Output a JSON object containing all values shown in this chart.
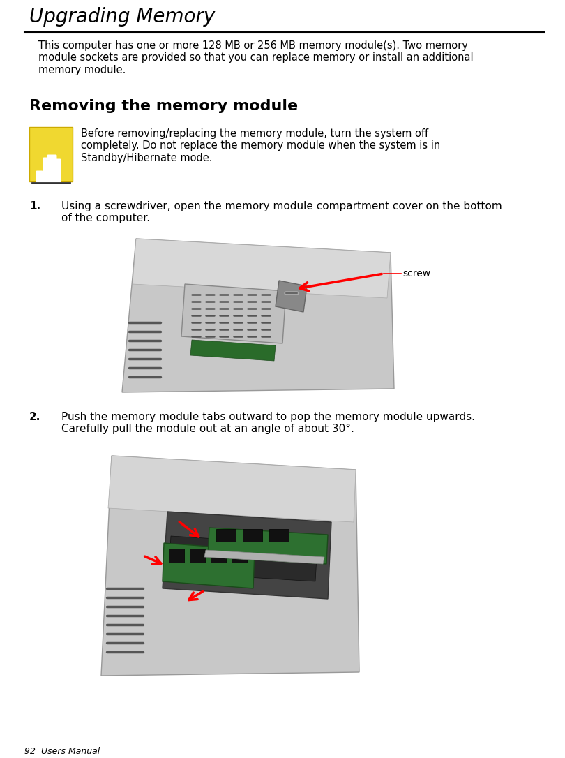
{
  "title": "Upgrading Memory",
  "page_num": "92  Users Manual",
  "bg_color": "#ffffff",
  "title_color": "#000000",
  "title_fontsize": 20,
  "body_text1": "This computer has one or more 128 MB or 256 MB memory module(s). Two memory\nmodule sockets are provided so that you can replace memory or install an additional\nmemory module.",
  "section_title": "Removing the memory module",
  "warning_text": "Before removing/replacing the memory module, turn the system off\ncompletely. Do not replace the memory module when the system is in\nStandby/Hibernate mode.",
  "step1_num": "1.",
  "step1_text": "Using a screwdriver, open the memory module compartment cover on the bottom\nof the computer.",
  "step2_num": "2.",
  "step2_text": "Push the memory module tabs outward to pop the memory module upwards.\nCarefully pull the module out at an angle of about 30°.",
  "screw_label": "screw",
  "warning_icon_color": "#f0d830",
  "line_color": "#000000",
  "body_fontsize": 10.5,
  "step_fontsize": 11,
  "warn_fontsize": 10.5,
  "section_fontsize": 16,
  "footer_fontsize": 9
}
